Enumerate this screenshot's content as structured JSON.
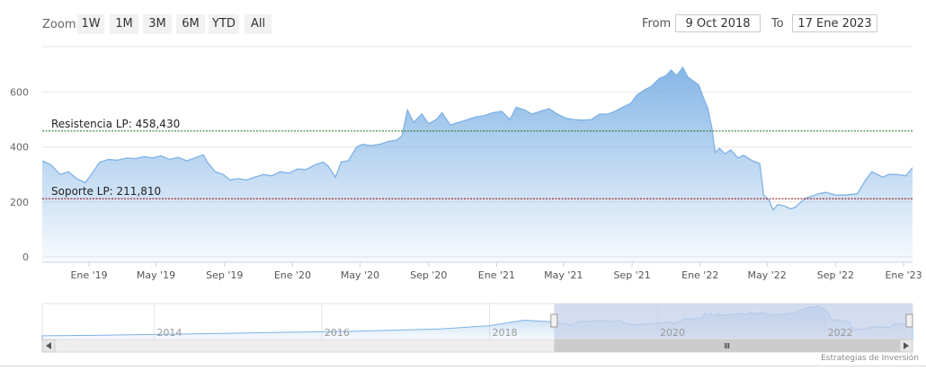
{
  "toolbar": {
    "zoom_label": "Zoom",
    "zoom_buttons": [
      "1W",
      "1M",
      "3M",
      "6M",
      "YTD",
      "All"
    ],
    "from_label": "From",
    "from_value": "9 Oct 2018",
    "to_label": "To",
    "to_value": "17 Ene 2023"
  },
  "credit": "Estrategias de Inversión",
  "colors": {
    "line": "#7fb2e5",
    "resistance": "#1a6b1a",
    "support": "#8b0000",
    "navigator_mask": "#c5d2ea"
  },
  "chart_data": {
    "type": "area",
    "title": "",
    "xlabel": "",
    "ylabel": "",
    "ylim": [
      0,
      700
    ],
    "y_ticks": [
      0,
      200,
      400,
      600
    ],
    "x_range": [
      "2018-10-09",
      "2023-01-17"
    ],
    "x_ticks": [
      {
        "date": "2019-01-01",
        "label": "Ene '19"
      },
      {
        "date": "2019-05-01",
        "label": "May '19"
      },
      {
        "date": "2019-09-01",
        "label": "Sep '19"
      },
      {
        "date": "2020-01-01",
        "label": "Ene '20"
      },
      {
        "date": "2020-05-01",
        "label": "May '20"
      },
      {
        "date": "2020-09-01",
        "label": "Sep '20"
      },
      {
        "date": "2021-01-01",
        "label": "Ene '21"
      },
      {
        "date": "2021-05-01",
        "label": "May '21"
      },
      {
        "date": "2021-09-01",
        "label": "Sep '21"
      },
      {
        "date": "2022-01-01",
        "label": "Ene '22"
      },
      {
        "date": "2022-05-01",
        "label": "May '22"
      },
      {
        "date": "2022-09-01",
        "label": "Sep '22"
      },
      {
        "date": "2023-01-01",
        "label": "Ene '23"
      }
    ],
    "grid": true,
    "series": [
      {
        "points": [
          [
            "2018-10-09",
            350
          ],
          [
            "2018-10-25",
            335
          ],
          [
            "2018-11-10",
            300
          ],
          [
            "2018-11-25",
            310
          ],
          [
            "2018-12-10",
            285
          ],
          [
            "2018-12-25",
            270
          ],
          [
            "2019-01-05",
            300
          ],
          [
            "2019-01-20",
            345
          ],
          [
            "2019-02-05",
            355
          ],
          [
            "2019-02-20",
            352
          ],
          [
            "2019-03-10",
            360
          ],
          [
            "2019-03-25",
            358
          ],
          [
            "2019-04-10",
            365
          ],
          [
            "2019-04-25",
            360
          ],
          [
            "2019-05-10",
            368
          ],
          [
            "2019-05-25",
            355
          ],
          [
            "2019-06-10",
            362
          ],
          [
            "2019-06-25",
            350
          ],
          [
            "2019-07-10",
            360
          ],
          [
            "2019-07-25",
            372
          ],
          [
            "2019-08-01",
            345
          ],
          [
            "2019-08-15",
            310
          ],
          [
            "2019-08-30",
            300
          ],
          [
            "2019-09-10",
            280
          ],
          [
            "2019-09-25",
            285
          ],
          [
            "2019-10-10",
            280
          ],
          [
            "2019-10-25",
            290
          ],
          [
            "2019-11-10",
            300
          ],
          [
            "2019-11-25",
            295
          ],
          [
            "2019-12-10",
            310
          ],
          [
            "2019-12-25",
            305
          ],
          [
            "2020-01-10",
            320
          ],
          [
            "2020-01-25",
            318
          ],
          [
            "2020-02-10",
            335
          ],
          [
            "2020-02-25",
            345
          ],
          [
            "2020-03-05",
            330
          ],
          [
            "2020-03-18",
            290
          ],
          [
            "2020-03-28",
            345
          ],
          [
            "2020-04-10",
            350
          ],
          [
            "2020-04-25",
            400
          ],
          [
            "2020-05-05",
            410
          ],
          [
            "2020-05-20",
            405
          ],
          [
            "2020-06-05",
            410
          ],
          [
            "2020-06-20",
            420
          ],
          [
            "2020-07-05",
            425
          ],
          [
            "2020-07-15",
            440
          ],
          [
            "2020-07-25",
            535
          ],
          [
            "2020-08-05",
            490
          ],
          [
            "2020-08-20",
            520
          ],
          [
            "2020-09-01",
            485
          ],
          [
            "2020-09-15",
            500
          ],
          [
            "2020-09-25",
            525
          ],
          [
            "2020-10-10",
            480
          ],
          [
            "2020-10-25",
            490
          ],
          [
            "2020-11-10",
            500
          ],
          [
            "2020-11-25",
            510
          ],
          [
            "2020-12-10",
            515
          ],
          [
            "2020-12-25",
            525
          ],
          [
            "2021-01-10",
            530
          ],
          [
            "2021-01-25",
            500
          ],
          [
            "2021-02-05",
            545
          ],
          [
            "2021-02-20",
            535
          ],
          [
            "2021-03-05",
            520
          ],
          [
            "2021-03-20",
            530
          ],
          [
            "2021-04-05",
            540
          ],
          [
            "2021-04-20",
            520
          ],
          [
            "2021-05-05",
            505
          ],
          [
            "2021-05-20",
            500
          ],
          [
            "2021-06-05",
            498
          ],
          [
            "2021-06-20",
            500
          ],
          [
            "2021-07-05",
            520
          ],
          [
            "2021-07-20",
            520
          ],
          [
            "2021-08-01",
            530
          ],
          [
            "2021-08-15",
            545
          ],
          [
            "2021-08-30",
            560
          ],
          [
            "2021-09-10",
            590
          ],
          [
            "2021-09-25",
            610
          ],
          [
            "2021-10-05",
            620
          ],
          [
            "2021-10-20",
            650
          ],
          [
            "2021-11-01",
            660
          ],
          [
            "2021-11-10",
            680
          ],
          [
            "2021-11-20",
            660
          ],
          [
            "2021-12-01",
            690
          ],
          [
            "2021-12-10",
            655
          ],
          [
            "2021-12-20",
            640
          ],
          [
            "2021-12-30",
            625
          ],
          [
            "2022-01-05",
            590
          ],
          [
            "2022-01-15",
            540
          ],
          [
            "2022-01-22",
            470
          ],
          [
            "2022-01-28",
            380
          ],
          [
            "2022-02-05",
            395
          ],
          [
            "2022-02-15",
            375
          ],
          [
            "2022-02-25",
            390
          ],
          [
            "2022-03-10",
            360
          ],
          [
            "2022-03-20",
            370
          ],
          [
            "2022-04-05",
            350
          ],
          [
            "2022-04-18",
            340
          ],
          [
            "2022-04-25",
            225
          ],
          [
            "2022-05-05",
            205
          ],
          [
            "2022-05-12",
            170
          ],
          [
            "2022-05-20",
            190
          ],
          [
            "2022-06-01",
            185
          ],
          [
            "2022-06-12",
            175
          ],
          [
            "2022-06-20",
            180
          ],
          [
            "2022-07-01",
            200
          ],
          [
            "2022-07-10",
            215
          ],
          [
            "2022-07-20",
            220
          ],
          [
            "2022-08-01",
            230
          ],
          [
            "2022-08-15",
            235
          ],
          [
            "2022-09-01",
            225
          ],
          [
            "2022-09-20",
            225
          ],
          [
            "2022-10-10",
            230
          ],
          [
            "2022-10-25",
            280
          ],
          [
            "2022-11-05",
            310
          ],
          [
            "2022-11-15",
            300
          ],
          [
            "2022-11-25",
            290
          ],
          [
            "2022-12-05",
            300
          ],
          [
            "2022-12-20",
            300
          ],
          [
            "2023-01-05",
            295
          ],
          [
            "2023-01-17",
            325
          ]
        ]
      }
    ],
    "reference_lines": [
      {
        "label": "Resistencia LP: 458,430",
        "value": 458.43,
        "style": "dashed",
        "color": "#1a6b1a"
      },
      {
        "label": "Soporte LP: 211,810",
        "value": 211.81,
        "style": "dashed",
        "color": "#8b0000"
      }
    ],
    "navigator": {
      "x_range": [
        "2012-09-01",
        "2023-01-17"
      ],
      "ticks": [
        {
          "date": "2014-01-01",
          "label": "2014"
        },
        {
          "date": "2016-01-01",
          "label": "2016"
        },
        {
          "date": "2018-01-01",
          "label": "2018"
        },
        {
          "date": "2020-01-01",
          "label": "2020"
        },
        {
          "date": "2022-01-01",
          "label": "2022"
        }
      ],
      "selected": [
        "2018-10-09",
        "2023-01-17"
      ],
      "points": [
        [
          "2012-09-01",
          40
        ],
        [
          "2013-06-01",
          55
        ],
        [
          "2014-06-01",
          80
        ],
        [
          "2015-06-01",
          110
        ],
        [
          "2016-06-01",
          140
        ],
        [
          "2017-06-01",
          190
        ],
        [
          "2018-01-01",
          260
        ],
        [
          "2018-06-01",
          380
        ],
        [
          "2018-10-09",
          340
        ]
      ]
    }
  }
}
